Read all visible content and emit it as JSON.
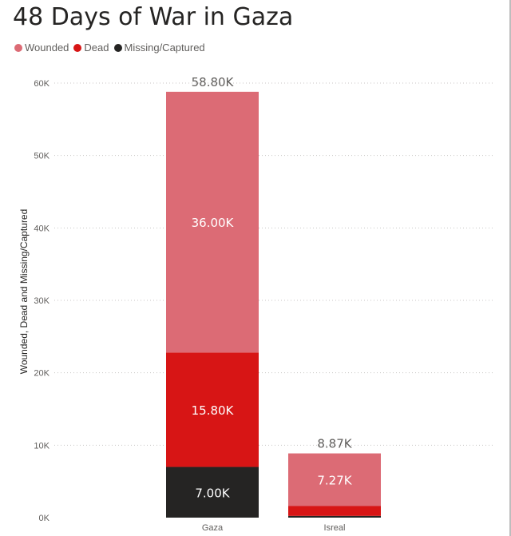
{
  "title": "48 Days of War in Gaza",
  "legend": [
    {
      "label": "Wounded",
      "color": "#dc6b75"
    },
    {
      "label": "Dead",
      "color": "#d71515"
    },
    {
      "label": "Missing/Captured",
      "color": "#252423"
    }
  ],
  "chart_data": {
    "type": "bar",
    "stacked": true,
    "title": "48 Days of War in Gaza",
    "ylabel": "Wounded, Dead and Missing/Captured",
    "xlabel": "",
    "ylim": [
      0,
      60000
    ],
    "yticks": [
      0,
      10000,
      20000,
      30000,
      40000,
      50000,
      60000
    ],
    "ytick_labels": [
      "0K",
      "10K",
      "20K",
      "30K",
      "40K",
      "50K",
      "60K"
    ],
    "grid": true,
    "legend_position": "top-left",
    "categories": [
      "Gaza",
      "Isreal"
    ],
    "series": [
      {
        "name": "Missing/Captured",
        "color": "#252423",
        "values": [
          7000,
          240
        ],
        "labels": [
          "7.00K",
          ""
        ]
      },
      {
        "name": "Dead",
        "color": "#d71515",
        "values": [
          15800,
          1360
        ],
        "labels": [
          "15.80K",
          ""
        ]
      },
      {
        "name": "Wounded",
        "color": "#dc6b75",
        "values": [
          36000,
          7270
        ],
        "labels": [
          "36.00K",
          "7.27K"
        ]
      }
    ],
    "totals": [
      58800,
      8870
    ],
    "total_labels": [
      "58.80K",
      "8.87K"
    ]
  }
}
